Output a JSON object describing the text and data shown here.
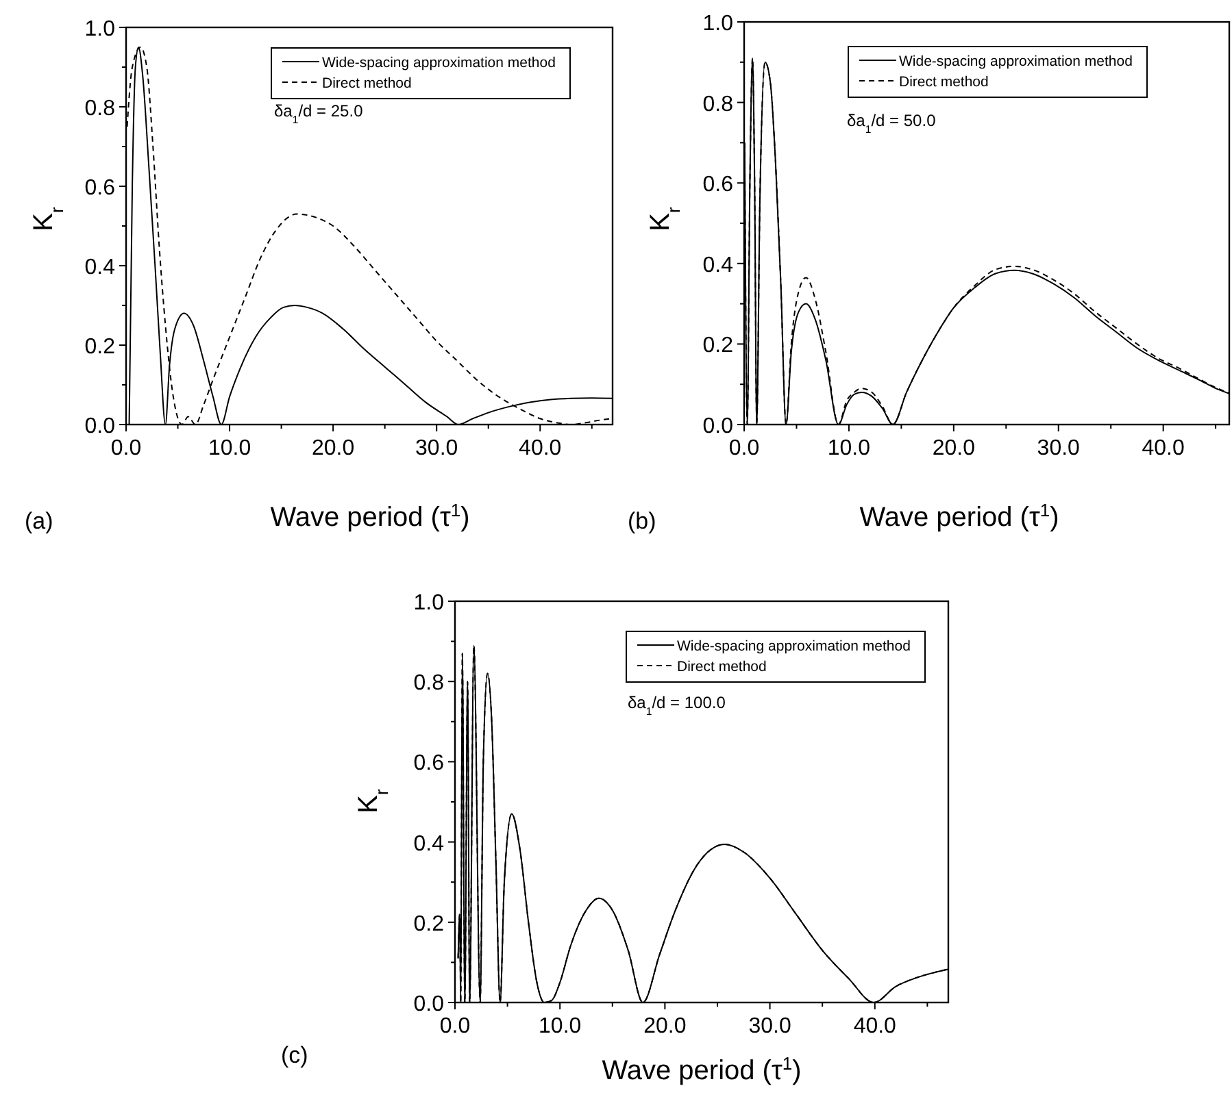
{
  "chart_data": [
    {
      "type": "line",
      "xlabel": "Wave period (τ$^{1}$)",
      "ylabel": "K$_{r}$",
      "xlim": [
        0,
        47
      ],
      "ylim": [
        0,
        1
      ],
      "xticks": [
        {
          "value": 0,
          "label": "0.0"
        },
        {
          "value": 10,
          "label": "10.0"
        },
        {
          "value": 20,
          "label": "20.0"
        },
        {
          "value": 30,
          "label": "30.0"
        },
        {
          "value": 40,
          "label": "40.0"
        }
      ],
      "yticks": [
        {
          "value": 0,
          "label": "0.0"
        },
        {
          "value": 0.2,
          "label": "0.2"
        },
        {
          "value": 0.4,
          "label": "0.4"
        },
        {
          "value": 0.6,
          "label": "0.6"
        },
        {
          "value": 0.8,
          "label": "0.8"
        },
        {
          "value": 1,
          "label": "1.0"
        }
      ],
      "legend": "top right",
      "annotations": [
        "δa$_{1}$/d = 25.0",
        "(a)"
      ],
      "series": [
        {
          "name": "Wide-spacing approximation method",
          "color": "#000000",
          "line_style": "solid",
          "x": [
            0.3,
            0.6,
            0.9,
            1.2,
            1.6,
            2.2,
            2.8,
            3.3,
            3.8,
            4.2,
            4.7,
            5.6,
            6.5,
            7.5,
            8.4,
            9.2,
            10,
            11,
            12.5,
            14,
            15.2,
            16.3,
            17.5,
            19,
            21,
            23,
            25,
            27,
            29,
            31,
            32.1,
            33.5,
            35,
            37,
            39,
            41,
            43,
            45,
            47
          ],
          "values": [
            0,
            0.6,
            0.9,
            0.95,
            0.88,
            0.65,
            0.4,
            0.18,
            0,
            0.15,
            0.24,
            0.28,
            0.25,
            0.16,
            0.07,
            0,
            0.07,
            0.14,
            0.22,
            0.27,
            0.295,
            0.3,
            0.295,
            0.28,
            0.24,
            0.19,
            0.145,
            0.1,
            0.055,
            0.02,
            0,
            0.015,
            0.03,
            0.045,
            0.056,
            0.063,
            0.066,
            0.067,
            0.066
          ]
        },
        {
          "name": "Direct method",
          "color": "#000000",
          "line_style": "dashed",
          "x": [
            0.1,
            0.6,
            1.4,
            2,
            2.6,
            3.2,
            3.8,
            4.5,
            5.4,
            6,
            6.7,
            7.5,
            8.5,
            10,
            11.5,
            13,
            14.5,
            16.5,
            18.5,
            20,
            22,
            24,
            26,
            28,
            30,
            32,
            34,
            36,
            38,
            40,
            42,
            43,
            44.5,
            46,
            47
          ],
          "values": [
            0.75,
            0.9,
            0.95,
            0.9,
            0.7,
            0.45,
            0.25,
            0.08,
            0,
            0.02,
            0,
            0.05,
            0.12,
            0.22,
            0.32,
            0.42,
            0.49,
            0.53,
            0.52,
            0.5,
            0.45,
            0.39,
            0.33,
            0.27,
            0.21,
            0.16,
            0.11,
            0.07,
            0.04,
            0.015,
            0.003,
            0,
            0.005,
            0.012,
            0.015
          ]
        }
      ]
    },
    {
      "type": "line",
      "xlabel": "Wave period (τ$^{1}$)",
      "ylabel": "K$_{r}$",
      "xlim": [
        0,
        46.3
      ],
      "ylim": [
        0,
        1
      ],
      "xticks": [
        {
          "value": 0,
          "label": "0.0"
        },
        {
          "value": 10,
          "label": "10.0"
        },
        {
          "value": 20,
          "label": "20.0"
        },
        {
          "value": 30,
          "label": "30.0"
        },
        {
          "value": 40,
          "label": "40.0"
        }
      ],
      "yticks": [
        {
          "value": 0,
          "label": "0.0"
        },
        {
          "value": 0.2,
          "label": "0.2"
        },
        {
          "value": 0.4,
          "label": "0.4"
        },
        {
          "value": 0.6,
          "label": "0.6"
        },
        {
          "value": 0.8,
          "label": "0.8"
        },
        {
          "value": 1,
          "label": "1.0"
        }
      ],
      "legend": "top right",
      "annotations": [
        "δa$_{1}$/d = 50.0",
        "(b)"
      ],
      "series": [
        {
          "name": "Wide-spacing approximation method",
          "color": "#000000",
          "line_style": "solid",
          "x": [
            0.05,
            0.3,
            0.55,
            0.8,
            1,
            1.2,
            1.5,
            2,
            2.5,
            3,
            3.5,
            4,
            4.5,
            5.2,
            5.9,
            6.8,
            7.8,
            9,
            9.8,
            10.5,
            11.2,
            12.2,
            13.2,
            14.2,
            15.5,
            17,
            18.5,
            20,
            22,
            24,
            25.8,
            27.5,
            29.5,
            31.5,
            33.5,
            35.5,
            37.5,
            39.5,
            41.5,
            43.5,
            45,
            46.3
          ],
          "values": [
            0.7,
            0,
            0.6,
            0.91,
            0.6,
            0,
            0.55,
            0.9,
            0.85,
            0.65,
            0.35,
            0,
            0.18,
            0.28,
            0.3,
            0.26,
            0.16,
            0,
            0.05,
            0.075,
            0.08,
            0.07,
            0.04,
            0,
            0.08,
            0.16,
            0.23,
            0.29,
            0.34,
            0.375,
            0.383,
            0.375,
            0.35,
            0.315,
            0.27,
            0.23,
            0.19,
            0.16,
            0.135,
            0.11,
            0.09,
            0.077
          ]
        },
        {
          "name": "Direct method",
          "color": "#000000",
          "line_style": "dashed",
          "x": [
            0.05,
            0.3,
            0.55,
            0.8,
            1,
            1.2,
            1.5,
            2,
            2.5,
            3,
            3.5,
            4,
            4.5,
            5.2,
            5.9,
            6.8,
            7.8,
            9,
            9.8,
            10.5,
            11.2,
            12.2,
            13.2,
            14.2,
            15.5,
            17,
            18.5,
            20,
            22,
            24,
            25.8,
            27.5,
            29.5,
            31.5,
            33.5,
            35.5,
            37.5,
            39.5,
            41.5,
            43.5,
            45,
            46.3
          ],
          "values": [
            0.7,
            0,
            0.6,
            0.91,
            0.6,
            0,
            0.55,
            0.9,
            0.85,
            0.65,
            0.35,
            0,
            0.2,
            0.33,
            0.365,
            0.31,
            0.18,
            0,
            0.06,
            0.08,
            0.09,
            0.08,
            0.045,
            0,
            0.08,
            0.16,
            0.23,
            0.29,
            0.345,
            0.385,
            0.393,
            0.385,
            0.36,
            0.325,
            0.28,
            0.24,
            0.2,
            0.165,
            0.14,
            0.112,
            0.092,
            0.078
          ]
        }
      ]
    },
    {
      "type": "line",
      "xlabel": "Wave period (τ$^{1}$)",
      "ylabel": "K$_{r}$",
      "xlim": [
        0,
        47
      ],
      "ylim": [
        0,
        1
      ],
      "xticks": [
        {
          "value": 0,
          "label": "0.0"
        },
        {
          "value": 10,
          "label": "10.0"
        },
        {
          "value": 20,
          "label": "20.0"
        },
        {
          "value": 30,
          "label": "30.0"
        },
        {
          "value": 40,
          "label": "40.0"
        }
      ],
      "yticks": [
        {
          "value": 0,
          "label": "0.0"
        },
        {
          "value": 0.2,
          "label": "0.2"
        },
        {
          "value": 0.4,
          "label": "0.4"
        },
        {
          "value": 0.6,
          "label": "0.6"
        },
        {
          "value": 0.8,
          "label": "0.8"
        },
        {
          "value": 1,
          "label": "1.0"
        }
      ],
      "legend": "top right",
      "annotations": [
        "δa$_{1}$/d = 100.0",
        "(c)"
      ],
      "series": [
        {
          "name": "Wide-spacing approximation method",
          "color": "#000000",
          "line_style": "solid",
          "x": [
            0.3,
            0.45,
            0.55,
            0.7,
            0.94,
            1.2,
            1.4,
            1.8,
            2.4,
            2.7,
            3.1,
            3.5,
            3.9,
            4.3,
            4.7,
            5.4,
            6.2,
            7,
            7.8,
            8.5,
            9.2,
            10,
            11,
            12.5,
            13.7,
            15,
            16.5,
            17.9,
            19.5,
            21,
            23,
            25.7,
            27.5,
            30,
            32.5,
            35,
            37.5,
            39.9,
            42,
            44,
            46,
            47
          ],
          "values": [
            0.11,
            0.22,
            0,
            0.87,
            0,
            0.8,
            0,
            0.89,
            0,
            0.6,
            0.82,
            0.7,
            0.35,
            0,
            0.3,
            0.47,
            0.38,
            0.2,
            0.05,
            0,
            0.005,
            0.05,
            0.14,
            0.23,
            0.26,
            0.23,
            0.13,
            0,
            0.12,
            0.23,
            0.34,
            0.394,
            0.375,
            0.31,
            0.22,
            0.13,
            0.06,
            0,
            0.04,
            0.062,
            0.077,
            0.083
          ]
        },
        {
          "name": "Direct method",
          "color": "#000000",
          "line_style": "dashed",
          "x": [
            0.3,
            0.45,
            0.55,
            0.7,
            0.94,
            1.2,
            1.4,
            1.8,
            2.4,
            2.7,
            3.1,
            3.5,
            3.9,
            4.3,
            4.7,
            5.4,
            6.2,
            7,
            7.8,
            8.5,
            9.2,
            10,
            11,
            12.5,
            13.7,
            15,
            16.5,
            17.9,
            19.5,
            21,
            23,
            25.7,
            27.5,
            30,
            32.5,
            35,
            37.5,
            39.9,
            42,
            44,
            46,
            47
          ],
          "values": [
            0.11,
            0.22,
            0,
            0.87,
            0,
            0.8,
            0,
            0.89,
            0,
            0.6,
            0.82,
            0.7,
            0.35,
            0,
            0.3,
            0.47,
            0.38,
            0.2,
            0.05,
            0,
            0.005,
            0.05,
            0.14,
            0.23,
            0.26,
            0.23,
            0.13,
            0,
            0.12,
            0.23,
            0.34,
            0.394,
            0.375,
            0.31,
            0.22,
            0.13,
            0.06,
            0,
            0.04,
            0.062,
            0.077,
            0.083
          ]
        }
      ]
    }
  ]
}
